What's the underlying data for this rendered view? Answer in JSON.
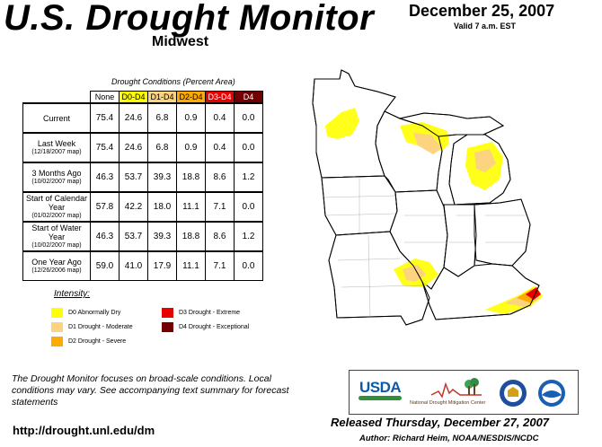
{
  "header": {
    "title": "U.S. Drought Monitor",
    "subtitle": "Midwest",
    "date": "December 25, 2007",
    "valid": "Valid 7 a.m. EST"
  },
  "table": {
    "caption": "Drought Conditions (Percent Area)",
    "columns": [
      "None",
      "D0-D4",
      "D1-D4",
      "D2-D4",
      "D3-D4",
      "D4"
    ],
    "rows": [
      {
        "label": "Current",
        "date": "",
        "values": [
          "75.4",
          "24.6",
          "6.8",
          "0.9",
          "0.4",
          "0.0"
        ]
      },
      {
        "label": "Last Week",
        "date": "(12/18/2007 map)",
        "values": [
          "75.4",
          "24.6",
          "6.8",
          "0.9",
          "0.4",
          "0.0"
        ]
      },
      {
        "label": "3 Months Ago",
        "date": "(10/02/2007 map)",
        "values": [
          "46.3",
          "53.7",
          "39.3",
          "18.8",
          "8.6",
          "1.2"
        ]
      },
      {
        "label": "Start of Calendar Year",
        "date": "(01/02/2007 map)",
        "values": [
          "57.8",
          "42.2",
          "18.0",
          "11.1",
          "7.1",
          "0.0"
        ]
      },
      {
        "label": "Start of Water Year",
        "date": "(10/02/2007 map)",
        "values": [
          "46.3",
          "53.7",
          "39.3",
          "18.8",
          "8.6",
          "1.2"
        ]
      },
      {
        "label": "One Year Ago",
        "date": "(12/26/2006 map)",
        "values": [
          "59.0",
          "41.0",
          "17.9",
          "11.1",
          "7.1",
          "0.0"
        ]
      }
    ]
  },
  "legend": {
    "title": "Intensity:",
    "items": [
      {
        "label": "D0 Abnormally Dry",
        "color": "#ffff00"
      },
      {
        "label": "D1 Drought - Moderate",
        "color": "#fcd37f"
      },
      {
        "label": "D2 Drought - Severe",
        "color": "#ffaa00"
      },
      {
        "label": "D3 Drought - Extreme",
        "color": "#e60000"
      },
      {
        "label": "D4 Drought - Exceptional",
        "color": "#730000"
      }
    ]
  },
  "footer": {
    "note": "The Drought Monitor focuses on broad-scale conditions. Local conditions may vary. See accompanying text summary for forecast statements",
    "url": "http://drought.unl.edu/dm",
    "released": "Released Thursday, December 27, 2007",
    "author": "Author: Richard Heim, NOAA/NESDIS/NCDC"
  },
  "logos": {
    "usda": "USDA",
    "ndmc": "National Drought Mitigation Center"
  }
}
